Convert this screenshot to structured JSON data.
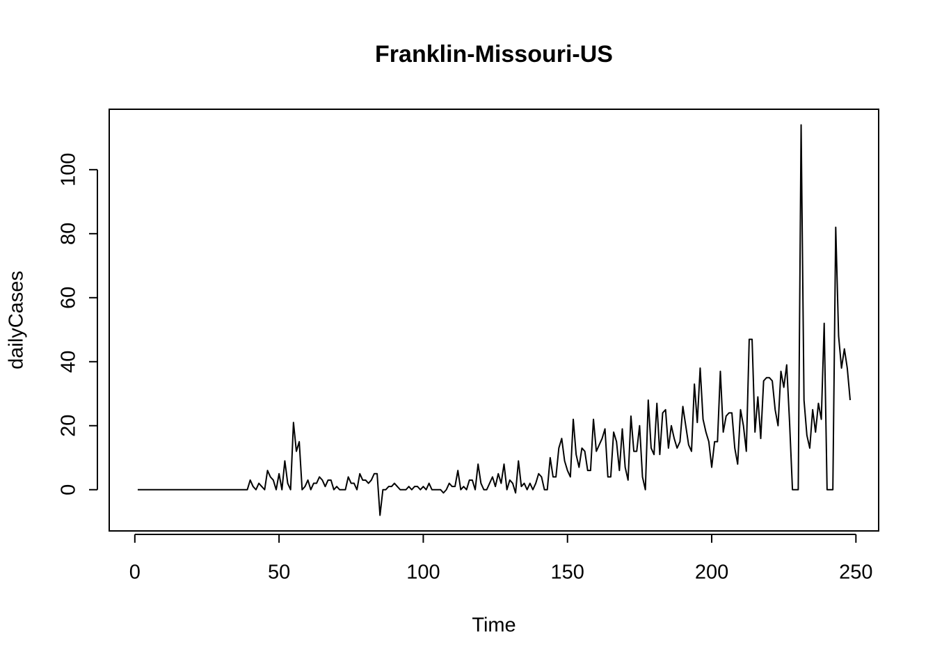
{
  "chart_data": {
    "type": "line",
    "title": "Franklin-Missouri-US",
    "xlabel": "Time",
    "ylabel": "dailyCases",
    "color": "#000000",
    "x": [
      1,
      2,
      3,
      4,
      5,
      6,
      7,
      8,
      9,
      10,
      11,
      12,
      13,
      14,
      15,
      16,
      17,
      18,
      19,
      20,
      21,
      22,
      23,
      24,
      25,
      26,
      27,
      28,
      29,
      30,
      31,
      32,
      33,
      34,
      35,
      36,
      37,
      38,
      39,
      40,
      41,
      42,
      43,
      44,
      45,
      46,
      47,
      48,
      49,
      50,
      51,
      52,
      53,
      54,
      55,
      56,
      57,
      58,
      59,
      60,
      61,
      62,
      63,
      64,
      65,
      66,
      67,
      68,
      69,
      70,
      71,
      72,
      73,
      74,
      75,
      76,
      77,
      78,
      79,
      80,
      81,
      82,
      83,
      84,
      85,
      86,
      87,
      88,
      89,
      90,
      91,
      92,
      93,
      94,
      95,
      96,
      97,
      98,
      99,
      100,
      101,
      102,
      103,
      104,
      105,
      106,
      107,
      108,
      109,
      110,
      111,
      112,
      113,
      114,
      115,
      116,
      117,
      118,
      119,
      120,
      121,
      122,
      123,
      124,
      125,
      126,
      127,
      128,
      129,
      130,
      131,
      132,
      133,
      134,
      135,
      136,
      137,
      138,
      139,
      140,
      141,
      142,
      143,
      144,
      145,
      146,
      147,
      148,
      149,
      150,
      151,
      152,
      153,
      154,
      155,
      156,
      157,
      158,
      159,
      160,
      161,
      162,
      163,
      164,
      165,
      166,
      167,
      168,
      169,
      170,
      171,
      172,
      173,
      174,
      175,
      176,
      177,
      178,
      179,
      180,
      181,
      182,
      183,
      184,
      185,
      186,
      187,
      188,
      189,
      190,
      191,
      192,
      193,
      194,
      195,
      196,
      197,
      198,
      199,
      200,
      201,
      202,
      203,
      204,
      205,
      206,
      207,
      208,
      209,
      210,
      211,
      212,
      213,
      214,
      215,
      216,
      217,
      218,
      219,
      220,
      221,
      222,
      223,
      224,
      225,
      226,
      227,
      228,
      229,
      230,
      231,
      232,
      233,
      234,
      235,
      236,
      237,
      238,
      239,
      240,
      241,
      242,
      243,
      244,
      245,
      246,
      247,
      248
    ],
    "values": [
      0,
      0,
      0,
      0,
      0,
      0,
      0,
      0,
      0,
      0,
      0,
      0,
      0,
      0,
      0,
      0,
      0,
      0,
      0,
      0,
      0,
      0,
      0,
      0,
      0,
      0,
      0,
      0,
      0,
      0,
      0,
      0,
      0,
      0,
      0,
      0,
      0,
      0,
      0,
      3,
      1,
      0,
      2,
      1,
      0,
      6,
      4,
      3,
      0,
      5,
      0,
      9,
      2,
      0,
      21,
      12,
      15,
      0,
      1,
      3,
      0,
      2,
      2,
      4,
      3,
      1,
      3,
      3,
      0,
      1,
      0,
      0,
      0,
      4,
      2,
      2,
      0,
      5,
      3,
      3,
      2,
      3,
      5,
      5,
      -8,
      0,
      0,
      1,
      1,
      2,
      1,
      0,
      0,
      0,
      1,
      0,
      1,
      1,
      0,
      1,
      0,
      2,
      0,
      0,
      0,
      0,
      -1,
      0,
      2,
      1,
      1,
      6,
      0,
      1,
      0,
      3,
      3,
      0,
      8,
      2,
      0,
      0,
      2,
      4,
      1,
      5,
      2,
      8,
      0,
      3,
      2,
      -1,
      9,
      1,
      2,
      0,
      2,
      0,
      2,
      5,
      4,
      0,
      0,
      10,
      4,
      4,
      13,
      16,
      9,
      6,
      4,
      22,
      11,
      7,
      13,
      12,
      6,
      6,
      22,
      12,
      14,
      16,
      19,
      4,
      4,
      18,
      15,
      6,
      19,
      7,
      3,
      23,
      12,
      12,
      20,
      4,
      0,
      28,
      13,
      11,
      27,
      11,
      24,
      25,
      13,
      20,
      16,
      13,
      15,
      26,
      20,
      14,
      12,
      33,
      21,
      38,
      22,
      18,
      15,
      7,
      15,
      15,
      37,
      18,
      23,
      24,
      24,
      13,
      8,
      25,
      20,
      12,
      47,
      47,
      18,
      29,
      16,
      34,
      35,
      35,
      34,
      25,
      20,
      37,
      32,
      39,
      21,
      0,
      0,
      0,
      114,
      28,
      17,
      13,
      25,
      18,
      27,
      22,
      52,
      0,
      0,
      0,
      82,
      48,
      38,
      44,
      38,
      28
    ],
    "xlim": [
      -8.88,
      257.88
    ],
    "xticks": [
      0,
      50,
      100,
      150,
      200,
      250
    ],
    "ylim": [
      -12.88,
      118.88
    ],
    "yticks": [
      0,
      20,
      40,
      60,
      80,
      100
    ]
  }
}
